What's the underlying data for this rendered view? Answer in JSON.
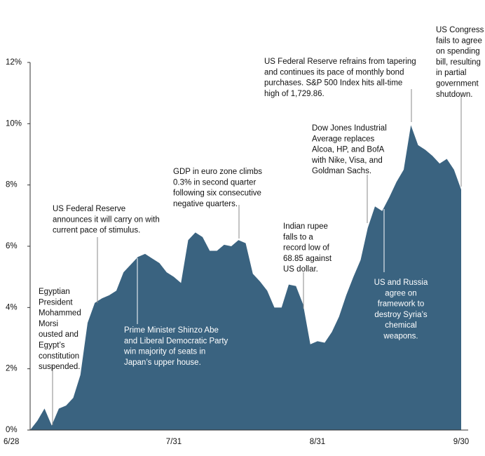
{
  "chart_data": {
    "type": "area",
    "categories": [
      "6/28",
      null,
      null,
      null,
      null,
      null,
      null,
      null,
      null,
      null,
      null,
      null,
      null,
      null,
      null,
      null,
      null,
      null,
      null,
      null,
      "7/31",
      null,
      null,
      null,
      null,
      null,
      null,
      null,
      null,
      null,
      null,
      null,
      null,
      null,
      null,
      null,
      null,
      null,
      null,
      null,
      "8/31",
      null,
      null,
      null,
      null,
      null,
      null,
      null,
      null,
      null,
      null,
      null,
      null,
      null,
      null,
      null,
      null,
      null,
      null,
      null,
      "9/30"
    ],
    "values": [
      0,
      0.3,
      0.7,
      0.15,
      0.7,
      0.8,
      1.05,
      1.8,
      3.5,
      4.15,
      4.3,
      4.4,
      4.55,
      5.15,
      5.4,
      5.65,
      5.75,
      5.6,
      5.45,
      5.15,
      5.0,
      4.8,
      6.2,
      6.45,
      6.3,
      5.85,
      5.85,
      6.05,
      6.0,
      6.2,
      6.1,
      5.1,
      4.85,
      4.55,
      4.0,
      4.0,
      4.75,
      4.7,
      4.1,
      2.8,
      2.9,
      2.85,
      3.2,
      3.7,
      4.4,
      5.0,
      5.55,
      6.6,
      7.3,
      7.15,
      7.6,
      8.1,
      8.5,
      9.95,
      9.3,
      9.15,
      8.95,
      8.7,
      8.85,
      8.5,
      7.85
    ],
    "color": "#3a6380",
    "ylim": [
      0,
      12
    ],
    "yticks": [
      {
        "value": 0,
        "label": "0%"
      },
      {
        "value": 2,
        "label": "2%"
      },
      {
        "value": 4,
        "label": "4%"
      },
      {
        "value": 6,
        "label": "6%"
      },
      {
        "value": 8,
        "label": "8%"
      },
      {
        "value": 10,
        "label": "10%"
      },
      {
        "value": 12,
        "label": "12%"
      }
    ],
    "annotations": [
      [
        "Egyptian",
        "President",
        "Mohammed",
        "Morsi",
        "ousted and",
        "Egypt’s",
        "constitution",
        "suspended."
      ],
      [
        "US Federal Reserve",
        "announces it will carry on with",
        "current pace of stimulus."
      ],
      [
        "Prime Minister Shinzo Abe",
        "and Liberal Democratic Party",
        "win majority of seats in",
        "Japan’s upper house."
      ],
      [
        "GDP in euro zone climbs",
        "0.3% in second quarter",
        "following six consecutive",
        "negative quarters."
      ],
      [
        "Indian rupee",
        "falls to a",
        "record low of",
        "68.85 against",
        "US dollar."
      ],
      [
        "Dow Jones Industrial",
        "Average replaces",
        "Alcoa, HP, and BofA",
        "with Nike, Visa, and",
        "Goldman Sachs."
      ],
      [
        "US and Russia",
        "agree on",
        "framework to",
        "destroy Syria’s",
        "chemical",
        "weapons."
      ],
      [
        "US Federal Reserve refrains from tapering",
        "and continues its pace of monthly bond",
        "purchases. S&P 500 Index hits all-time",
        "high of 1,729.86."
      ],
      [
        "US Congress",
        "fails to agree",
        "on spending",
        "bill, resulting",
        "in partial",
        "government",
        "shutdown."
      ]
    ]
  }
}
